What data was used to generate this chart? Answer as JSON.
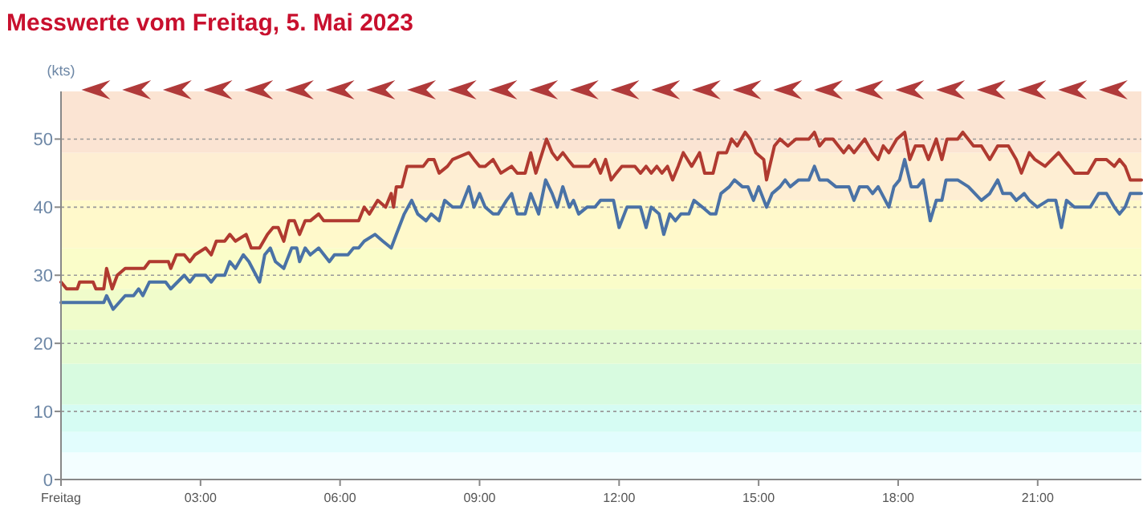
{
  "chart_data": {
    "type": "line",
    "title": "Messwerte vom Freitag, 5. Mai 2023",
    "ylabel": "(kts)",
    "xlim": [
      0,
      23.23
    ],
    "ylim": [
      0,
      57
    ],
    "xticks": [
      {
        "value": 0,
        "label": "Freitag"
      },
      {
        "value": 3,
        "label": "03:00"
      },
      {
        "value": 6,
        "label": "06:00"
      },
      {
        "value": 9,
        "label": "09:00"
      },
      {
        "value": 12,
        "label": "12:00"
      },
      {
        "value": 15,
        "label": "15:00"
      },
      {
        "value": 18,
        "label": "18:00"
      },
      {
        "value": 21,
        "label": "21:00"
      }
    ],
    "yticks": [
      0,
      10,
      20,
      30,
      40,
      50
    ],
    "grid": "y",
    "marker": "none",
    "line_style": "solid",
    "bands": [
      {
        "axis": "y",
        "from": 0,
        "to": 4,
        "color": "#f3feff"
      },
      {
        "axis": "y",
        "from": 4,
        "to": 7,
        "color": "#e2fdfd"
      },
      {
        "axis": "y",
        "from": 7,
        "to": 11,
        "color": "#d6fcf3"
      },
      {
        "axis": "y",
        "from": 11,
        "to": 17,
        "color": "#d8fbe0"
      },
      {
        "axis": "y",
        "from": 17,
        "to": 22,
        "color": "#e4fbd2"
      },
      {
        "axis": "y",
        "from": 22,
        "to": 28,
        "color": "#f0fccb"
      },
      {
        "axis": "y",
        "from": 28,
        "to": 34,
        "color": "#fafdc9"
      },
      {
        "axis": "y",
        "from": 34,
        "to": 41,
        "color": "#fff9cb"
      },
      {
        "axis": "y",
        "from": 41,
        "to": 48,
        "color": "#feeed3"
      },
      {
        "axis": "y",
        "from": 48,
        "to": 57,
        "color": "#fbe4d3"
      }
    ],
    "series": [
      {
        "color": "#b03a30",
        "x": [
          0,
          0.12,
          0.35,
          0.4,
          0.69,
          0.75,
          0.92,
          0.98,
          1.1,
          1.21,
          1.38,
          1.79,
          1.9,
          2.31,
          2.36,
          2.48,
          2.65,
          2.77,
          2.88,
          3.11,
          3.23,
          3.34,
          3.52,
          3.63,
          3.75,
          3.98,
          4.09,
          4.27,
          4.44,
          4.56,
          4.67,
          4.79,
          4.9,
          5.02,
          5.13,
          5.25,
          5.36,
          5.54,
          5.65,
          6.4,
          6.52,
          6.63,
          6.81,
          6.98,
          7.1,
          7.15,
          7.21,
          7.33,
          7.44,
          7.79,
          7.9,
          8.02,
          8.13,
          8.31,
          8.42,
          8.77,
          8.88,
          9,
          9.12,
          9.29,
          9.46,
          9.69,
          9.81,
          9.98,
          10.1,
          10.21,
          10.44,
          10.56,
          10.67,
          10.79,
          10.9,
          11.02,
          11.36,
          11.48,
          11.6,
          11.71,
          11.83,
          11.94,
          12.06,
          12.34,
          12.46,
          12.58,
          12.69,
          12.81,
          12.92,
          13.04,
          13.15,
          13.27,
          13.38,
          13.56,
          13.73,
          13.84,
          14.02,
          14.13,
          14.31,
          14.42,
          14.54,
          14.71,
          14.82,
          14.94,
          15.11,
          15.17,
          15.34,
          15.46,
          15.63,
          15.8,
          16.08,
          16.2,
          16.31,
          16.43,
          16.6,
          16.83,
          16.94,
          17.05,
          17.28,
          17.45,
          17.57,
          17.68,
          17.8,
          17.97,
          18.14,
          18.25,
          18.37,
          18.54,
          18.65,
          18.82,
          18.94,
          19.05,
          19.28,
          19.39,
          19.62,
          19.79,
          19.97,
          20.14,
          20.37,
          20.54,
          20.65,
          20.82,
          20.94,
          21.16,
          21.45,
          21.56,
          21.68,
          21.79,
          22.08,
          22.25,
          22.48,
          22.65,
          22.76,
          22.88,
          22.99,
          23.23
        ],
        "values": [
          29,
          28,
          28,
          29,
          29,
          28,
          28,
          31,
          28,
          30,
          31,
          31,
          32,
          32,
          31,
          33,
          33,
          32,
          33,
          34,
          33,
          35,
          35,
          36,
          35,
          36,
          34,
          34,
          36,
          37,
          37,
          35,
          38,
          38,
          36,
          38,
          38,
          39,
          38,
          38,
          40,
          39,
          41,
          40,
          42,
          40,
          43,
          43,
          46,
          46,
          47,
          47,
          45,
          46,
          47,
          48,
          47,
          46,
          46,
          47,
          45,
          46,
          45,
          45,
          48,
          45,
          50,
          48,
          47,
          48,
          47,
          46,
          46,
          47,
          45,
          47,
          44,
          45,
          46,
          46,
          45,
          46,
          45,
          46,
          45,
          46,
          44,
          46,
          48,
          46,
          48,
          45,
          45,
          48,
          48,
          50,
          49,
          51,
          50,
          48,
          47,
          44,
          49,
          50,
          49,
          50,
          50,
          51,
          49,
          50,
          50,
          48,
          49,
          48,
          50,
          48,
          47,
          49,
          48,
          50,
          51,
          47,
          49,
          49,
          47,
          50,
          47,
          50,
          50,
          51,
          49,
          49,
          47,
          49,
          49,
          47,
          45,
          48,
          47,
          46,
          48,
          47,
          46,
          45,
          45,
          47,
          47,
          46,
          47,
          46,
          44,
          44
        ]
      },
      {
        "color": "#4a72a6",
        "x": [
          0,
          0.92,
          0.98,
          1.12,
          1.38,
          1.56,
          1.67,
          1.76,
          1.9,
          2.25,
          2.36,
          2.65,
          2.77,
          2.88,
          3.11,
          3.23,
          3.34,
          3.52,
          3.63,
          3.75,
          3.92,
          4.04,
          4.27,
          4.38,
          4.5,
          4.61,
          4.79,
          4.96,
          5.07,
          5.13,
          5.25,
          5.36,
          5.54,
          5.77,
          5.88,
          6.17,
          6.29,
          6.4,
          6.52,
          6.75,
          6.92,
          7.1,
          7.21,
          7.38,
          7.54,
          7.67,
          7.85,
          7.96,
          8.13,
          8.25,
          8.42,
          8.6,
          8.77,
          8.88,
          9,
          9.12,
          9.29,
          9.4,
          9.58,
          9.69,
          9.81,
          9.98,
          10.1,
          10.27,
          10.42,
          10.56,
          10.67,
          10.79,
          10.93,
          11.02,
          11.13,
          11.31,
          11.48,
          11.6,
          11.88,
          12,
          12.17,
          12.46,
          12.58,
          12.69,
          12.86,
          12.96,
          13.09,
          13.21,
          13.33,
          13.5,
          13.61,
          13.79,
          13.96,
          14.08,
          14.19,
          14.37,
          14.48,
          14.65,
          14.77,
          14.89,
          15,
          15.17,
          15.29,
          15.46,
          15.57,
          15.68,
          15.86,
          16.08,
          16.2,
          16.31,
          16.48,
          16.66,
          16.94,
          17.05,
          17.17,
          17.34,
          17.45,
          17.57,
          17.8,
          17.91,
          18.03,
          18.14,
          18.28,
          18.42,
          18.54,
          18.69,
          18.82,
          18.94,
          19.03,
          19.28,
          19.51,
          19.79,
          19.97,
          20.14,
          20.25,
          20.42,
          20.54,
          20.71,
          20.82,
          20.99,
          21.22,
          21.39,
          21.51,
          21.62,
          21.79,
          22.13,
          22.31,
          22.48,
          22.65,
          22.76,
          22.88,
          22.99,
          23.23
        ],
        "values": [
          26,
          26,
          27,
          25,
          27,
          27,
          28,
          27,
          29,
          29,
          28,
          30,
          29,
          30,
          30,
          29,
          30,
          30,
          32,
          31,
          33,
          32,
          29,
          33,
          34,
          32,
          31,
          34,
          34,
          32,
          34,
          33,
          34,
          32,
          33,
          33,
          34,
          34,
          35,
          36,
          35,
          34,
          36,
          39,
          41,
          39,
          38,
          39,
          38,
          41,
          40,
          40,
          43,
          40,
          42,
          40,
          39,
          39,
          41,
          42,
          39,
          39,
          42,
          39,
          44,
          42,
          40,
          43,
          40,
          41,
          39,
          40,
          40,
          41,
          41,
          37,
          40,
          40,
          37,
          40,
          39,
          36,
          39,
          38,
          39,
          39,
          41,
          40,
          39,
          39,
          42,
          43,
          44,
          43,
          43,
          41,
          43,
          40,
          42,
          43,
          44,
          43,
          44,
          44,
          46,
          44,
          44,
          43,
          43,
          41,
          43,
          43,
          42,
          43,
          40,
          43,
          44,
          47,
          43,
          43,
          44,
          38,
          41,
          41,
          44,
          44,
          43,
          41,
          42,
          44,
          42,
          42,
          41,
          42,
          41,
          40,
          41,
          41,
          37,
          41,
          40,
          40,
          42,
          42,
          40,
          39,
          40,
          42,
          42
        ]
      }
    ]
  }
}
